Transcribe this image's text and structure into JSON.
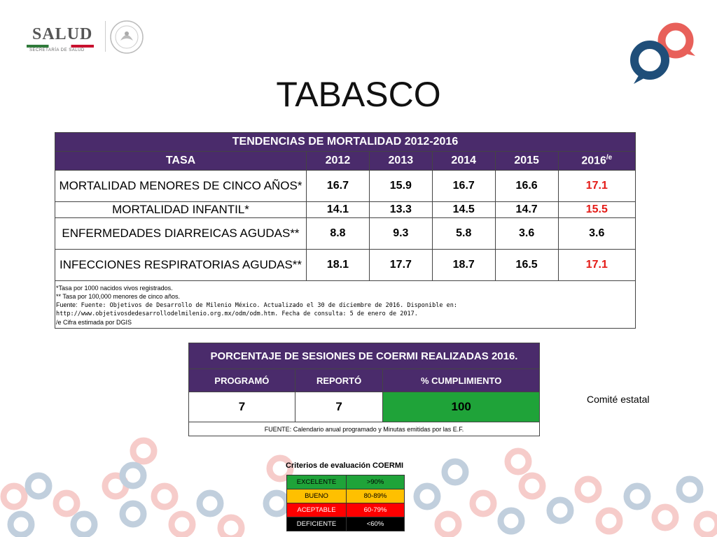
{
  "header": {
    "logo_word": "SALUD",
    "logo_sub": "SECRETARÍA DE SALUD",
    "logo_alt": "salud-logo",
    "seal_alt": "mexico-seal"
  },
  "title": "TABASCO",
  "mortality": {
    "caption": "TENDENCIAS DE MORTALIDAD 2012-2016",
    "headers": [
      "TASA",
      "2012",
      "2013",
      "2014",
      "2015",
      "2016"
    ],
    "last_header_sup": "/e",
    "rows": [
      {
        "label": "MORTALIDAD MENORES DE CINCO AÑOS*",
        "values": [
          "16.7",
          "15.9",
          "16.7",
          "16.6",
          "17.1"
        ]
      },
      {
        "label": "MORTALIDAD INFANTIL*",
        "values": [
          "14.1",
          "13.3",
          "14.5",
          "14.7",
          "15.5"
        ]
      },
      {
        "label": "ENFERMEDADES DIARREICAS AGUDAS**",
        "values": [
          "8.8",
          "9.3",
          "5.8",
          "3.6",
          "3.6"
        ]
      },
      {
        "label": "INFECCIONES RESPIRATORIAS AGUDAS**",
        "values": [
          "18.1",
          "17.7",
          "18.7",
          "16.5",
          "17.1"
        ]
      }
    ],
    "notes": {
      "n1": "*Tasa por 1000 nacidos vivos registrados.",
      "n2": "** Tasa por 100,000 menores de cinco años.",
      "n3_label": "Fuente:",
      "n3_text": " Fuente: Objetivos de Desarrollo de Milenio México. Actualizado el 30 de diciembre de 2016. Disponible en:",
      "n4": "http://www.objetivosdedesarrollodelmilenio.org.mx/odm/odm.htm. Fecha de consulta: 5 de enero de 2017.",
      "n5": "/e Cifra estimada por DGIS"
    },
    "highlight_color": "#e41b17"
  },
  "coermi": {
    "caption": "PORCENTAJE DE SESIONES DE COERMI REALIZADAS 2016.",
    "headers": [
      "PROGRAMÓ",
      "REPORTÓ",
      "% CUMPLIMIENTO"
    ],
    "values": [
      "7",
      "7",
      "100"
    ],
    "source": "FUENTE: Calendario anual programado y Minutas emitidas por las E.F.",
    "status_color": "#1fa339"
  },
  "comite": "Comité estatal",
  "criteria": {
    "title": "Criterios de evaluación COERMI",
    "rows": [
      {
        "name": "EXCELENTE",
        "range": ">90%",
        "color": "#1fa339",
        "text_color": "#000000"
      },
      {
        "name": "BUENO",
        "range": "80-89%",
        "color": "#ffc000",
        "text_color": "#000000"
      },
      {
        "name": "ACEPTABLE",
        "range": "60-79%",
        "color": "#ff0000",
        "text_color": "#ffffff"
      },
      {
        "name": "DEFICIENTE",
        "range": "<60%",
        "color": "#000000",
        "text_color": "#ffffff"
      }
    ]
  },
  "colors": {
    "header_purple": "#4a2b6b",
    "brand_blue": "#1f4e79",
    "brand_coral": "#e8605a"
  }
}
